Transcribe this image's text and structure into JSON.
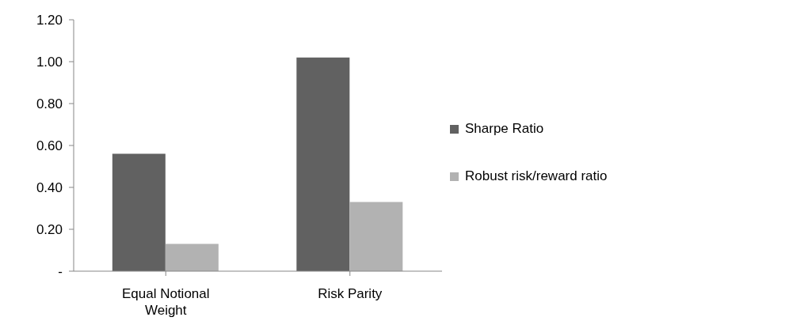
{
  "chart_data": {
    "type": "bar",
    "categories": [
      "Equal Notional Weight",
      "Risk Parity"
    ],
    "series": [
      {
        "name": "Sharpe Ratio",
        "color": "#616161",
        "values": [
          0.56,
          1.02
        ]
      },
      {
        "name": "Robust risk/reward ratio",
        "color": "#b2b2b2",
        "values": [
          0.13,
          0.33
        ]
      }
    ],
    "ylim": [
      0,
      1.2
    ],
    "yticks": [
      {
        "value": 0,
        "label": "-"
      },
      {
        "value": 0.2,
        "label": "0.20"
      },
      {
        "value": 0.4,
        "label": "0.40"
      },
      {
        "value": 0.6,
        "label": "0.60"
      },
      {
        "value": 0.8,
        "label": "0.80"
      },
      {
        "value": 1,
        "label": "1.00"
      },
      {
        "value": 1.2,
        "label": "1.20"
      }
    ],
    "grid": false,
    "legend": "right"
  }
}
